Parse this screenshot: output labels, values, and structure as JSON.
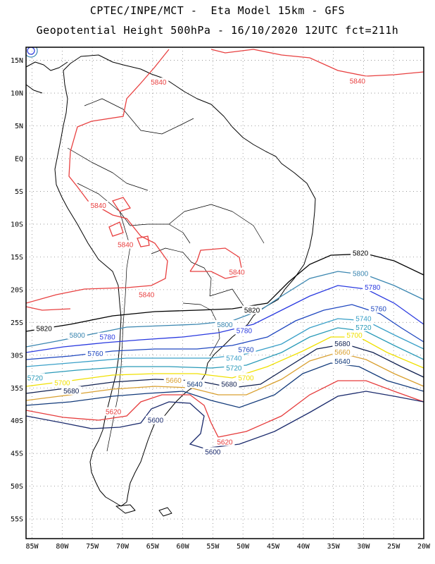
{
  "header": {
    "title_line1": "CPTEC/INPE/MCT -  Eta Model 15km - GFS",
    "title_line2": "Geopotential Height 500hPa - 16/10/2020 12UTC fct=211h"
  },
  "map": {
    "lon_range": [
      -86,
      -20
    ],
    "lat_range": [
      -58,
      17
    ],
    "lat_labels": [
      "15N",
      "10N",
      "5N",
      "EQ",
      "5S",
      "10S",
      "15S",
      "20S",
      "25S",
      "30S",
      "35S",
      "40S",
      "45S",
      "50S",
      "55S"
    ],
    "lat_values": [
      15,
      10,
      5,
      0,
      -5,
      -10,
      -15,
      -20,
      -25,
      -30,
      -35,
      -40,
      -45,
      -50,
      -55
    ],
    "lon_labels": [
      "85W",
      "80W",
      "75W",
      "70W",
      "65W",
      "60W",
      "55W",
      "50W",
      "45W",
      "40W",
      "35W",
      "30W",
      "25W",
      "20W"
    ],
    "lon_values": [
      -85,
      -80,
      -75,
      -70,
      -65,
      -60,
      -55,
      -50,
      -45,
      -40,
      -35,
      -30,
      -25,
      -20
    ],
    "grid": "dotted"
  },
  "contour_colors": {
    "5600": "#1a2a6c",
    "5620": "#e63c3c",
    "5640": "#123a7a",
    "5660": "#d9a030",
    "5680": "#102050",
    "5700": "#f0e000",
    "5720": "#2a9ab8",
    "5740": "#3aa0c8",
    "5760": "#2048c0",
    "5780": "#2a3ae0",
    "5800": "#3a86b0",
    "5820": "#000000",
    "5840": "#e84040"
  },
  "contours": [
    {
      "level": "5840",
      "label": "5840",
      "lon": -31,
      "lat": 11.8
    },
    {
      "level": "5840",
      "label": "5840",
      "lon": -64,
      "lat": 11.6
    },
    {
      "level": "5840",
      "label": "5840",
      "lon": -74,
      "lat": -7.2
    },
    {
      "level": "5840",
      "label": "5840",
      "lon": -69.5,
      "lat": -13.2
    },
    {
      "level": "5840",
      "label": "5840",
      "lon": -51,
      "lat": -17.4
    },
    {
      "level": "5840",
      "label": "5840",
      "lon": -66,
      "lat": -20.8
    },
    {
      "level": "5820",
      "label": "5820",
      "lon": -30.5,
      "lat": -14.5
    },
    {
      "level": "5820",
      "label": "5820",
      "lon": -48.5,
      "lat": -23.2
    },
    {
      "level": "5820",
      "label": "5820",
      "lon": -83,
      "lat": -26.0
    },
    {
      "level": "5800",
      "label": "5800",
      "lon": -30.5,
      "lat": -17.6
    },
    {
      "level": "5800",
      "label": "5800",
      "lon": -53,
      "lat": -25.4
    },
    {
      "level": "5800",
      "label": "5800",
      "lon": -77.5,
      "lat": -27.0
    },
    {
      "level": "5780",
      "label": "5780",
      "lon": -28.5,
      "lat": -19.7
    },
    {
      "level": "5780",
      "label": "5780",
      "lon": -49.8,
      "lat": -26.3
    },
    {
      "level": "5780",
      "label": "5780",
      "lon": -72.5,
      "lat": -27.3
    },
    {
      "level": "5760",
      "label": "5760",
      "lon": -27.5,
      "lat": -23.0
    },
    {
      "level": "5760",
      "label": "5760",
      "lon": -49.5,
      "lat": -29.2
    },
    {
      "level": "5760",
      "label": "5760",
      "lon": -74.5,
      "lat": -29.8
    },
    {
      "level": "5740",
      "label": "5740",
      "lon": -30,
      "lat": -24.5
    },
    {
      "level": "5740",
      "label": "5740",
      "lon": -51.5,
      "lat": -30.5
    },
    {
      "level": "5720",
      "label": "5720",
      "lon": -30,
      "lat": -25.8
    },
    {
      "level": "5720",
      "label": "5720",
      "lon": -51.5,
      "lat": -32.0
    },
    {
      "level": "5720",
      "label": "5720",
      "lon": -84.5,
      "lat": -33.5
    },
    {
      "level": "5700",
      "label": "5700",
      "lon": -31.5,
      "lat": -27.0
    },
    {
      "level": "5700",
      "label": "5700",
      "lon": -49.5,
      "lat": -33.5
    },
    {
      "level": "5700",
      "label": "5700",
      "lon": -80,
      "lat": -34.3
    },
    {
      "level": "5680",
      "label": "5680",
      "lon": -33.5,
      "lat": -28.3
    },
    {
      "level": "5680",
      "label": "5680",
      "lon": -52.3,
      "lat": -34.5
    },
    {
      "level": "5680",
      "label": "5680",
      "lon": -78.5,
      "lat": -35.5
    },
    {
      "level": "5660",
      "label": "5660",
      "lon": -33.5,
      "lat": -29.6
    },
    {
      "level": "5660",
      "label": "5660",
      "lon": -61.5,
      "lat": -33.9
    },
    {
      "level": "5640",
      "label": "5640",
      "lon": -33.5,
      "lat": -31.0
    },
    {
      "level": "5640",
      "label": "5640",
      "lon": -58,
      "lat": -34.5
    },
    {
      "level": "5620",
      "label": "5620",
      "lon": -71.5,
      "lat": -38.7
    },
    {
      "level": "5620",
      "label": "5620",
      "lon": -53,
      "lat": -43.3
    },
    {
      "level": "5600",
      "label": "5600",
      "lon": -64.5,
      "lat": -40.0
    },
    {
      "level": "5600",
      "label": "5600",
      "lon": -55,
      "lat": -44.8
    }
  ]
}
